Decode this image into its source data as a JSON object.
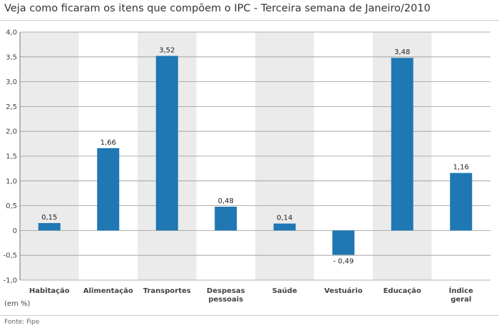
{
  "title": "Veja como ficaram os itens que compõem o IPC - Terceira semana de Janeiro/2010",
  "unit_label": "(em %)",
  "source": "Fonte: Fipe",
  "colors": {
    "bar": "#1f77b4",
    "band": "#ebebeb",
    "grid": "#999999"
  },
  "chart_data": {
    "type": "bar",
    "categories": [
      "Habitação",
      "Alimentação",
      "Transportes",
      "Despesas pessoais",
      "Saúde",
      "Vestuário",
      "Educação",
      "Índice geral"
    ],
    "category_lines": [
      [
        "Habitação"
      ],
      [
        "Alimentação"
      ],
      [
        "Transportes"
      ],
      [
        "Despesas",
        "pessoais"
      ],
      [
        "Saúde"
      ],
      [
        "Vestuário"
      ],
      [
        "Educação"
      ],
      [
        "Índice",
        "geral"
      ]
    ],
    "values": [
      0.15,
      1.66,
      3.52,
      0.48,
      0.14,
      -0.49,
      3.48,
      1.16
    ],
    "data_labels": [
      "0,15",
      "1,66",
      "3,52",
      "0,48",
      "0,14",
      "- 0,49",
      "3,48",
      "1,16"
    ],
    "ylim": [
      -1.0,
      4.0
    ],
    "yticks": [
      4.0,
      3.5,
      3.0,
      2.5,
      2.0,
      1.5,
      1.0,
      0.5,
      0,
      -0.5,
      -1.0
    ],
    "ytick_labels": [
      "4,0",
      "3,5",
      "3,0",
      "2,5",
      "2,0",
      "1,5",
      "1,0",
      "0,5",
      "0",
      "-0,5",
      "-1,0"
    ],
    "shaded_categories": [
      0,
      2,
      4,
      6
    ],
    "grid": true,
    "ylabel": "(em %)",
    "xlabel": ""
  }
}
